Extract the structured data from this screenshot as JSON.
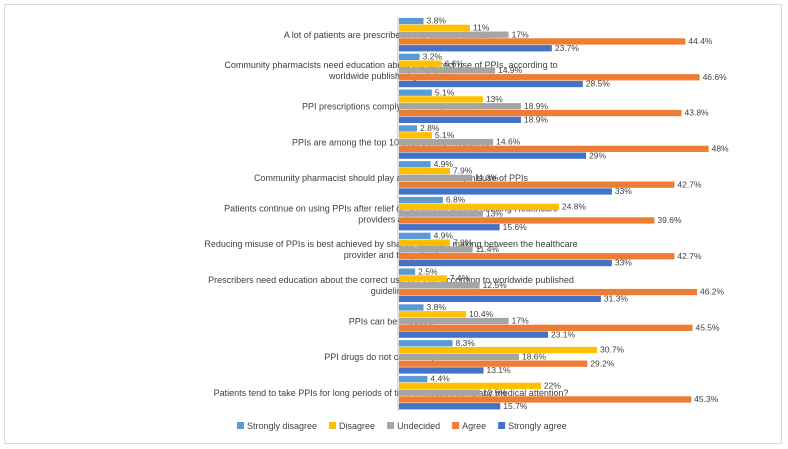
{
  "chart_data": {
    "type": "bar",
    "orientation": "horizontal",
    "title": "",
    "xlabel": "",
    "ylabel": "",
    "xlim": [
      0,
      50
    ],
    "grid": false,
    "legend_position": "bottom",
    "categories": [
      [
        "A lot of patients are prescribed PPIs without indication"
      ],
      [
        "Community pharmacists need education about the correct use of PPIs, according to",
        "worldwide published guidelines"
      ],
      [
        "PPI prescriptions comply with the guidelines."
      ],
      [
        "PPIs are among the top 10 best-selling medicines"
      ],
      [
        "Community pharmacist should play a role in reducing misuse of PPIs"
      ],
      [
        "Patients continue on using PPIs after relief of symptoms without seeking Healthcare",
        "providers advice"
      ],
      [
        "Reducing misuse of PPIs is best achieved by shared-decision making between the healthcare",
        "provider and the patient"
      ],
      [
        "Prescribers need education about the correct use of PPIs, according to worldwide published",
        "guidelines"
      ],
      [
        "PPIs can be misused"
      ],
      [
        "PPI drugs do not cause any harm"
      ],
      [
        "Patients tend to take PPIs for long periods of time without seeking any medical attention?"
      ]
    ],
    "series": [
      {
        "name": "Strongly disagree",
        "color": "#5b9bd5",
        "values": [
          3.8,
          3.2,
          5.1,
          2.8,
          4.9,
          6.8,
          4.9,
          2.5,
          3.8,
          8.3,
          4.4
        ],
        "labels": [
          "3.8%",
          "3.2%",
          "5.1%",
          "2.8%",
          "4.9%",
          "6.8%",
          "4.9%",
          "2.5%",
          "3.8%",
          "8.3%",
          "4.4%"
        ]
      },
      {
        "name": "Disagree",
        "color": "#ffc000",
        "values": [
          11,
          6.6,
          13,
          5.1,
          7.9,
          24.8,
          7.9,
          7.4,
          10.4,
          30.7,
          22
        ],
        "labels": [
          "11%",
          "6.6%",
          "13%",
          "5.1%",
          "7.9%",
          "24.8%",
          "7.9%",
          "7.4%",
          "10.4%",
          "30.7%",
          "22%"
        ]
      },
      {
        "name": "Undecided",
        "color": "#a5a5a5",
        "values": [
          17,
          14.9,
          18.9,
          14.6,
          11.3,
          13,
          11.4,
          12.5,
          17,
          18.6,
          12.5
        ],
        "labels": [
          "17%",
          "14.9%",
          "18.9%",
          "14.6%",
          "11.3%",
          "13%",
          "11.4%",
          "12.5%",
          "17%",
          "18.6%",
          "12.5%"
        ]
      },
      {
        "name": "Agree",
        "color": "#ed7d31",
        "values": [
          44.4,
          46.6,
          43.8,
          48,
          42.7,
          39.6,
          42.7,
          46.2,
          45.5,
          29.2,
          45.3
        ],
        "labels": [
          "44.4%",
          "46.6%",
          "43.8%",
          "48%",
          "42.7%",
          "39.6%",
          "42.7%",
          "46.2%",
          "45.5%",
          "29.2%",
          "45.3%"
        ]
      },
      {
        "name": "Strongly agree",
        "color": "#4472c4",
        "values": [
          23.7,
          28.5,
          18.9,
          29,
          33,
          15.6,
          33,
          31.3,
          23.1,
          13.1,
          15.7
        ],
        "labels": [
          "23.7%",
          "28.5%",
          "18.9%",
          "29%",
          "33%",
          "15.6%",
          "33%",
          "31.3%",
          "23.1%",
          "13.1%",
          "15.7%"
        ]
      }
    ]
  }
}
